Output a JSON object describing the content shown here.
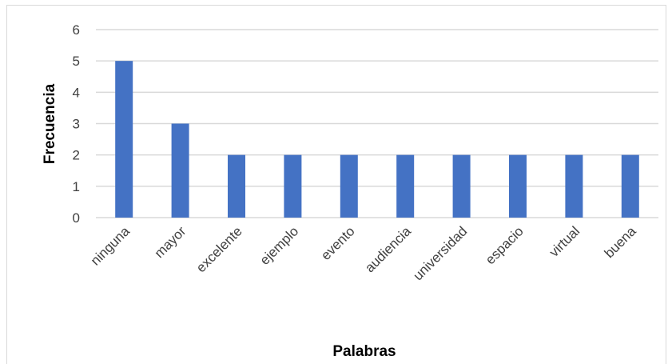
{
  "chart_data": {
    "type": "bar",
    "title": "",
    "xlabel": "Palabras",
    "ylabel": "Frecuencia",
    "categories": [
      "ninguna",
      "mayor",
      "excelente",
      "ejemplo",
      "evento",
      "audiencia",
      "universidad",
      "espacio",
      "virtual",
      "buena"
    ],
    "values": [
      5,
      3,
      2,
      2,
      2,
      2,
      2,
      2,
      2,
      2
    ],
    "ylim": [
      0,
      6
    ],
    "yticks": [
      "0",
      "1",
      "2",
      "3",
      "4",
      "5",
      "6"
    ],
    "grid": true,
    "legend": "none",
    "colors": {
      "bar": "#4472C4",
      "grid": "#d9d9d9"
    }
  }
}
